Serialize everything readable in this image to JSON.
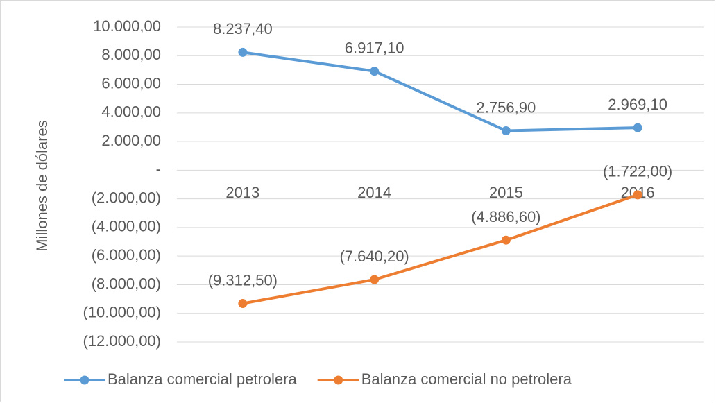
{
  "chart_data": {
    "type": "line",
    "y_label": "Millones de dólares",
    "categories": [
      "2013",
      "2014",
      "2015",
      "2016"
    ],
    "series": [
      {
        "name": "Balanza comercial petrolera",
        "color": "#5b9bd5",
        "values": [
          8237.4,
          6917.1,
          2756.9,
          2969.1
        ],
        "value_labels": [
          "8.237,40",
          "6.917,10",
          "2.756,90",
          "2.969,10"
        ]
      },
      {
        "name": "Balanza comercial no petrolera",
        "color": "#ed7d31",
        "values": [
          -9312.5,
          -7640.2,
          -4886.6,
          -1722.0
        ],
        "value_labels": [
          "(9.312,50)",
          "(7.640,20)",
          "(4.886,60)",
          "(1.722,00)"
        ]
      }
    ],
    "ylim": [
      -12000,
      10000
    ],
    "yticks": [
      {
        "value": 10000,
        "label": "10.000,00"
      },
      {
        "value": 8000,
        "label": "8.000,00"
      },
      {
        "value": 6000,
        "label": "6.000,00"
      },
      {
        "value": 4000,
        "label": "4.000,00"
      },
      {
        "value": 2000,
        "label": "2.000,00"
      },
      {
        "value": 0,
        "label": "-"
      },
      {
        "value": -2000,
        "label": "(2.000,00)"
      },
      {
        "value": -4000,
        "label": "(4.000,00)"
      },
      {
        "value": -6000,
        "label": "(6.000,00)"
      },
      {
        "value": -8000,
        "label": "(8.000,00)"
      },
      {
        "value": -10000,
        "label": "(10.000,00)"
      },
      {
        "value": -12000,
        "label": "(12.000,00)"
      }
    ],
    "grid": true,
    "legend": "bottom"
  }
}
